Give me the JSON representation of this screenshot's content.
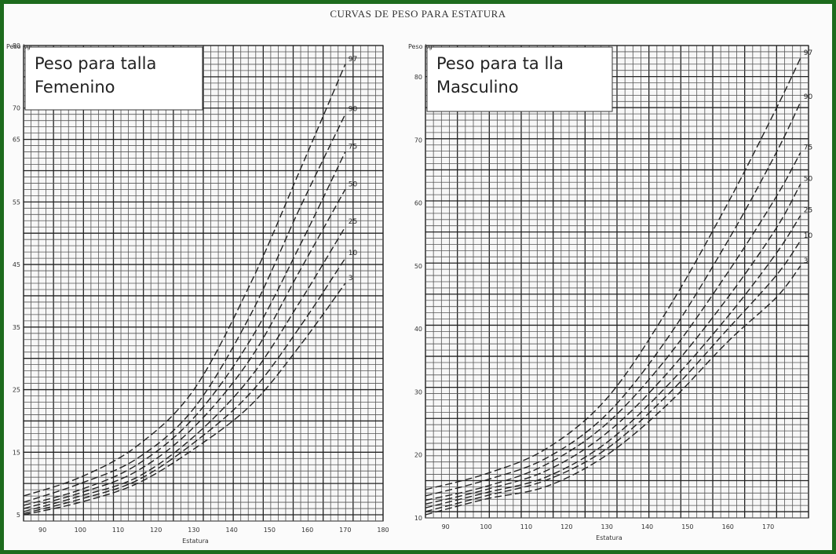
{
  "page": {
    "title": "CURVAS DE PESO PARA ESTATURA",
    "frame_color": "#1d6b1d"
  },
  "chart_data": [
    {
      "type": "line",
      "title_lines": [
        "Peso para talla",
        "Femenino"
      ],
      "xlabel": "Estatura",
      "ylabel": "Peso kg",
      "xlim": [
        85,
        180
      ],
      "ylim": [
        4,
        80
      ],
      "x_ticks": [
        {
          "v": 90,
          "t": "90"
        },
        {
          "v": 100,
          "t": "100"
        },
        {
          "v": 110,
          "t": "110"
        },
        {
          "v": 120,
          "t": "120"
        },
        {
          "v": 130,
          "t": "130"
        },
        {
          "v": 140,
          "t": "140"
        },
        {
          "v": 150,
          "t": "150"
        },
        {
          "v": 160,
          "t": "160"
        },
        {
          "v": 170,
          "t": "170"
        },
        {
          "v": 180,
          "t": "180"
        }
      ],
      "y_ticks": [
        {
          "v": 5,
          "t": "5"
        },
        {
          "v": 15,
          "t": "15"
        },
        {
          "v": 25,
          "t": "25"
        },
        {
          "v": 35,
          "t": "35"
        },
        {
          "v": 45,
          "t": "45"
        },
        {
          "v": 55,
          "t": "55"
        },
        {
          "v": 65,
          "t": "65"
        },
        {
          "v": 70,
          "t": "70"
        },
        {
          "v": 80,
          "t": "80"
        }
      ],
      "grid": true,
      "series": [
        {
          "name": "97",
          "x": [
            85,
            100,
            115,
            130,
            145,
            158,
            170
          ],
          "y": [
            8,
            11,
            16,
            25,
            42,
            60,
            77
          ]
        },
        {
          "name": "90",
          "x": [
            85,
            100,
            115,
            130,
            145,
            158,
            170
          ],
          "y": [
            7,
            10,
            14,
            22,
            37,
            54,
            69
          ]
        },
        {
          "name": "75",
          "x": [
            85,
            100,
            115,
            130,
            145,
            158,
            170
          ],
          "y": [
            6.5,
            9,
            13,
            20.5,
            33,
            48,
            63
          ]
        },
        {
          "name": "50",
          "x": [
            85,
            100,
            115,
            130,
            145,
            158,
            170
          ],
          "y": [
            6,
            8.5,
            12,
            19,
            30,
            44,
            57
          ]
        },
        {
          "name": "25",
          "x": [
            85,
            100,
            115,
            130,
            145,
            158,
            170
          ],
          "y": [
            5.5,
            8,
            11,
            17.5,
            27,
            39,
            51
          ]
        },
        {
          "name": "10",
          "x": [
            85,
            100,
            115,
            130,
            145,
            158,
            170
          ],
          "y": [
            5.2,
            7.5,
            10.5,
            16.5,
            24.5,
            35,
            46
          ]
        },
        {
          "name": "3",
          "x": [
            85,
            100,
            115,
            130,
            145,
            158,
            170
          ],
          "y": [
            5,
            7,
            10,
            15.5,
            22.5,
            32,
            42
          ]
        }
      ]
    },
    {
      "type": "line",
      "title_lines": [
        "Peso para ta lla",
        "Masculino"
      ],
      "xlabel": "Estatura",
      "ylabel": "Peso kg",
      "xlim": [
        85,
        180
      ],
      "ylim": [
        10,
        85
      ],
      "x_ticks": [
        {
          "v": 90,
          "t": "90"
        },
        {
          "v": 100,
          "t": "100"
        },
        {
          "v": 110,
          "t": "110"
        },
        {
          "v": 120,
          "t": "120"
        },
        {
          "v": 130,
          "t": "130"
        },
        {
          "v": 140,
          "t": "140"
        },
        {
          "v": 150,
          "t": "150"
        },
        {
          "v": 160,
          "t": "160"
        },
        {
          "v": 170,
          "t": "170"
        }
      ],
      "y_ticks": [
        {
          "v": 10,
          "t": "10"
        },
        {
          "v": 20,
          "t": "20"
        },
        {
          "v": 30,
          "t": "30"
        },
        {
          "v": 40,
          "t": "40"
        },
        {
          "v": 50,
          "t": "50"
        },
        {
          "v": 60,
          "t": "60"
        },
        {
          "v": 70,
          "t": "70"
        },
        {
          "v": 80,
          "t": "80"
        }
      ],
      "grid": true,
      "series": [
        {
          "name": "97",
          "x": [
            85,
            100,
            115,
            130,
            145,
            160,
            172,
            178
          ],
          "y": [
            14.5,
            17,
            21,
            29,
            43,
            60,
            75,
            83
          ]
        },
        {
          "name": "90",
          "x": [
            85,
            100,
            115,
            130,
            145,
            160,
            172,
            178
          ],
          "y": [
            13.5,
            16,
            19.5,
            26.5,
            38.5,
            54,
            68,
            76
          ]
        },
        {
          "name": "75",
          "x": [
            85,
            100,
            115,
            130,
            145,
            160,
            172,
            178
          ],
          "y": [
            12.8,
            15,
            18.5,
            25,
            35.5,
            49,
            61,
            68
          ]
        },
        {
          "name": "50",
          "x": [
            85,
            100,
            115,
            130,
            145,
            160,
            172,
            178
          ],
          "y": [
            12.2,
            14.5,
            17.5,
            23.5,
            33,
            45,
            56,
            63
          ]
        },
        {
          "name": "25",
          "x": [
            85,
            100,
            115,
            130,
            145,
            160,
            172,
            178
          ],
          "y": [
            11.6,
            14,
            16.5,
            22,
            31,
            42,
            52,
            58
          ]
        },
        {
          "name": "10",
          "x": [
            85,
            100,
            115,
            130,
            145,
            160,
            172,
            178
          ],
          "y": [
            11,
            13.5,
            16,
            21,
            29.5,
            40,
            48.5,
            54
          ]
        },
        {
          "name": "3",
          "x": [
            85,
            100,
            115,
            130,
            145,
            160,
            172,
            178
          ],
          "y": [
            10.5,
            13,
            15,
            20,
            28,
            38,
            45,
            50
          ]
        }
      ]
    }
  ]
}
